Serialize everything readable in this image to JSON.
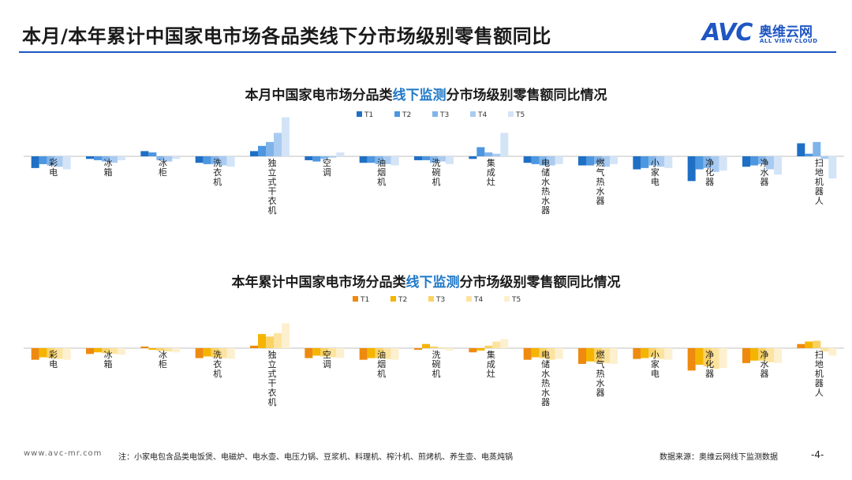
{
  "page": {
    "title": "本月/本年累计中国家电市场各品类线下分市场级别零售额同比",
    "logo": {
      "mark": "AVC",
      "cn": "奥维云网",
      "en": "ALL VIEW CLOUD"
    }
  },
  "colors": {
    "monthly": [
      "#1f6fc5",
      "#4d96e0",
      "#7fb4ea",
      "#aacbf1",
      "#d4e4f7"
    ],
    "yearly": [
      "#ee8a0f",
      "#f5b400",
      "#fad264",
      "#fce4a0",
      "#fdf0cf"
    ]
  },
  "chart_data": [
    {
      "type": "bar",
      "title_pre": "本月中国家电市场分品类",
      "title_hl": "线下监测",
      "title_post": "分市场级别零售额同比情况",
      "categories": [
        "彩电",
        "冰箱",
        "冰柜",
        "洗衣机",
        "独立式干衣机",
        "空调",
        "油烟机",
        "洗碗机",
        "集成灶",
        "电储水热水器",
        "燃气热水器",
        "小家电",
        "净化器",
        "净水器",
        "扫地机器人"
      ],
      "series": [
        {
          "name": "T1",
          "values": [
            -9,
            -2,
            4,
            -5,
            4,
            -3,
            -5,
            -3,
            -2,
            -5,
            -7,
            -10,
            -19,
            -8,
            10
          ]
        },
        {
          "name": "T2",
          "values": [
            -6,
            -3,
            3,
            -6,
            8,
            -4,
            -5,
            -3,
            7,
            -6,
            -7,
            -9,
            -10,
            -7,
            2
          ]
        },
        {
          "name": "T3",
          "values": [
            -7,
            -4,
            -3,
            -6,
            11,
            -2,
            -6,
            -5,
            3,
            -7,
            -6,
            -7,
            -9,
            -6,
            11
          ]
        },
        {
          "name": "T4",
          "values": [
            -8,
            -5,
            -4,
            -7,
            18,
            -1,
            -6,
            -4,
            2,
            -7,
            -8,
            -8,
            -12,
            -10,
            -2
          ]
        },
        {
          "name": "T5",
          "values": [
            -10,
            -3,
            -2,
            -8,
            30,
            3,
            -7,
            -6,
            18,
            -6,
            -6,
            -9,
            -11,
            -14,
            -17
          ]
        }
      ]
    },
    {
      "type": "bar",
      "title_pre": "本年累计中国家电市场分品类",
      "title_hl": "线下监测",
      "title_post": "分市场级别零售额同比情况",
      "categories": [
        "彩电",
        "冰箱",
        "冰柜",
        "洗衣机",
        "独立式干衣机",
        "空调",
        "油烟机",
        "洗碗机",
        "集成灶",
        "电储水热水器",
        "燃气热水器",
        "小家电",
        "净化器",
        "净水器",
        "扫地机器人"
      ],
      "series": [
        {
          "name": "T1",
          "values": [
            -14,
            -7,
            2,
            -12,
            3,
            -12,
            -14,
            -2,
            -5,
            -14,
            -19,
            -13,
            -27,
            -18,
            5
          ]
        },
        {
          "name": "T2",
          "values": [
            -11,
            -5,
            -2,
            -10,
            17,
            -9,
            -12,
            5,
            -3,
            -11,
            -16,
            -12,
            -20,
            -15,
            8
          ]
        },
        {
          "name": "T3",
          "values": [
            -12,
            -6,
            -3,
            -11,
            14,
            -10,
            -12,
            2,
            3,
            -12,
            -17,
            -11,
            -22,
            -15,
            9
          ]
        },
        {
          "name": "T4",
          "values": [
            -13,
            -7,
            -4,
            -12,
            18,
            -11,
            -13,
            1,
            8,
            -14,
            -18,
            -13,
            -25,
            -17,
            -4
          ]
        },
        {
          "name": "T5",
          "values": [
            -14,
            -8,
            -5,
            -13,
            30,
            -12,
            -14,
            -3,
            11,
            -13,
            -19,
            -14,
            -24,
            -18,
            -9
          ]
        }
      ]
    }
  ],
  "footer": {
    "url": "www.avc-mr.com",
    "note": "注：小家电包含品类电饭煲、电磁炉、电水壶、电压力锅、豆浆机、料理机、榨汁机、煎烤机、养生壶、电蒸炖锅",
    "source": "数据来源：奥维云网线下监测数据",
    "page_num": "-4-"
  }
}
